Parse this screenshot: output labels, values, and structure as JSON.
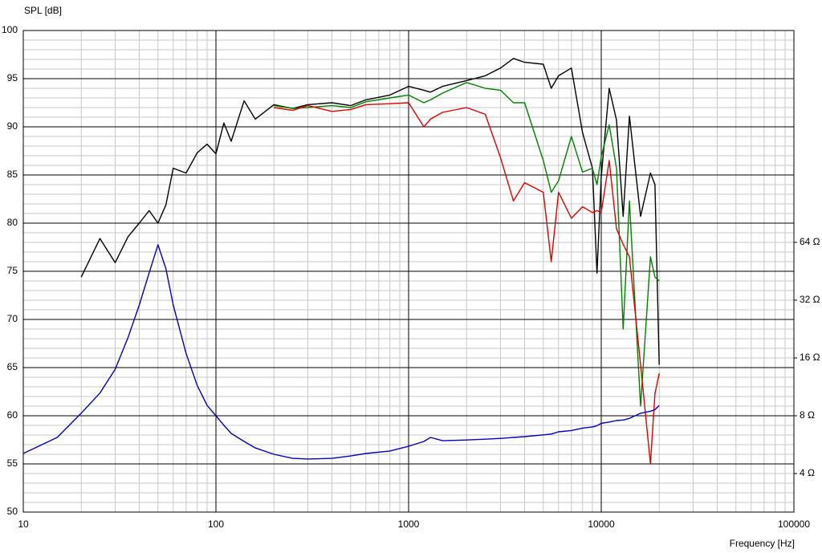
{
  "chart_data": {
    "type": "line",
    "y_label": "SPL [dB]",
    "x_label": "Frequency [Hz]",
    "x_scale": "log",
    "y2_scale": "log",
    "grid": true,
    "minor_grid": true,
    "xlim": [
      10,
      100000
    ],
    "xticks": [
      10,
      100,
      1000,
      10000,
      100000
    ],
    "ylim": [
      50,
      100
    ],
    "yticks": [
      50,
      55,
      60,
      65,
      70,
      75,
      80,
      85,
      90,
      95,
      100
    ],
    "y2lim": [
      2.52,
      812
    ],
    "y2ticks": [
      {
        "value": 4,
        "label": "4 Ω"
      },
      {
        "value": 8,
        "label": "8 Ω"
      },
      {
        "value": 16,
        "label": "16 Ω"
      },
      {
        "value": 32,
        "label": "32 Ω"
      },
      {
        "value": 64,
        "label": "64 Ω"
      }
    ],
    "x": [
      10,
      15,
      20,
      25,
      30,
      35,
      40,
      45,
      50,
      55,
      60,
      70,
      80,
      90,
      100,
      110,
      120,
      140,
      160,
      200,
      250,
      300,
      400,
      500,
      600,
      800,
      1000,
      1200,
      1300,
      1500,
      2000,
      2500,
      3000,
      3500,
      4000,
      5000,
      5500,
      6000,
      7000,
      8000,
      9000,
      9500,
      10000,
      11000,
      12000,
      13000,
      14000,
      16000,
      18000,
      19000,
      20000
    ],
    "series": [
      {
        "color": "#000000",
        "values": [
          null,
          null,
          74.4,
          78.4,
          75.9,
          78.6,
          80,
          81.3,
          80,
          81.9,
          85.7,
          85.2,
          87.3,
          88.2,
          87.2,
          90.4,
          88.5,
          92.7,
          90.8,
          92.3,
          91.9,
          92.3,
          92.5,
          92.2,
          92.8,
          93.3,
          94.2,
          93.8,
          93.6,
          94.2,
          94.8,
          95.3,
          96.1,
          97.1,
          96.7,
          96.5,
          94.0,
          95.3,
          96.1,
          89.4,
          85.7,
          74.8,
          84.8,
          94,
          90.7,
          80.7,
          91.1,
          80.7,
          85.2,
          84,
          65.3
        ]
      },
      {
        "color": "#008000",
        "values": [
          null,
          null,
          null,
          null,
          null,
          null,
          null,
          null,
          null,
          null,
          null,
          null,
          null,
          null,
          null,
          null,
          null,
          null,
          null,
          92.2,
          91.9,
          92.0,
          92.2,
          92.0,
          92.6,
          93.0,
          93.3,
          92.5,
          92.8,
          93.5,
          94.6,
          94.0,
          93.8,
          92.5,
          92.5,
          86.5,
          83.2,
          84.4,
          89,
          85.3,
          85.7,
          84,
          86.9,
          90.2,
          85.7,
          69,
          82.3,
          61,
          76.5,
          74.4,
          74
        ]
      },
      {
        "color": "#e00000",
        "values": [
          null,
          null,
          null,
          null,
          null,
          null,
          null,
          null,
          null,
          null,
          null,
          null,
          null,
          null,
          null,
          null,
          null,
          null,
          null,
          92,
          91.7,
          92.2,
          91.6,
          91.8,
          92.3,
          92.4,
          92.5,
          90,
          90.8,
          91.5,
          92,
          91.3,
          86.8,
          82.3,
          84.2,
          83.2,
          76,
          83.2,
          80.5,
          81.7,
          81.1,
          81.3,
          81.1,
          86.5,
          79.4,
          77.8,
          76.5,
          65.3,
          55,
          62.3,
          64.4
        ]
      },
      {
        "color": "#0000c0",
        "axis": "y2",
        "values": [
          5.09,
          6.17,
          8.25,
          10.5,
          13.98,
          20.5,
          30.2,
          44.4,
          62.2,
          46.6,
          30.2,
          16.9,
          11.5,
          9.06,
          8,
          7.13,
          6.47,
          5.88,
          5.44,
          5.04,
          4.8,
          4.76,
          4.8,
          4.94,
          5.09,
          5.24,
          5.55,
          5.88,
          6.17,
          5.93,
          5.98,
          6.04,
          6.1,
          6.17,
          6.23,
          6.36,
          6.42,
          6.6,
          6.7,
          6.9,
          7.0,
          7.1,
          7.3,
          7.42,
          7.55,
          7.6,
          7.75,
          8.24,
          8.45,
          8.6,
          9.06
        ]
      }
    ]
  }
}
